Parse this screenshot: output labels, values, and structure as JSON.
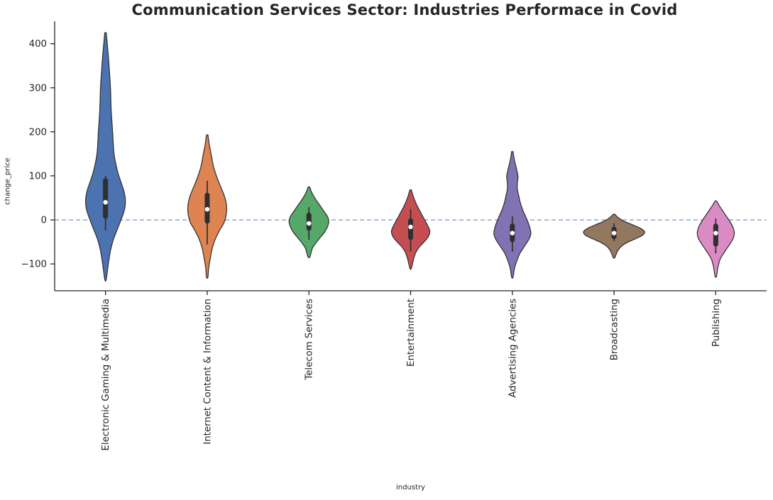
{
  "chart_data": {
    "type": "violin",
    "title": "Communication Services Sector: Industries Performace in Covid",
    "xlabel": "industry",
    "ylabel": "change_price",
    "ylim": [
      -161,
      451
    ],
    "grid": false,
    "legend": "none",
    "yticks": [
      {
        "value": 400,
        "label": "400"
      },
      {
        "value": 300,
        "label": "300"
      },
      {
        "value": 200,
        "label": "200"
      },
      {
        "value": 100,
        "label": "100"
      },
      {
        "value": 0,
        "label": "0"
      },
      {
        "value": -100,
        "label": "−100"
      }
    ],
    "reference_line": {
      "y": 0,
      "style": "dashed",
      "color": "#7ba2c9"
    },
    "categories": [
      "Electronic Gaming & Multimedia",
      "Internet Content & Information",
      "Telecom Services",
      "Entertainment",
      "Advertising Agencies",
      "Broadcasting",
      "Publishing"
    ],
    "violins": [
      {
        "label": "Electronic Gaming & Multimedia",
        "color": "#4C72B0",
        "density": [
          [
            425,
            1
          ],
          [
            390,
            3
          ],
          [
            350,
            5
          ],
          [
            300,
            7
          ],
          [
            250,
            8
          ],
          [
            200,
            10
          ],
          [
            150,
            12
          ],
          [
            110,
            17
          ],
          [
            85,
            22
          ],
          [
            65,
            26
          ],
          [
            45,
            28
          ],
          [
            25,
            27
          ],
          [
            5,
            23
          ],
          [
            -20,
            17
          ],
          [
            -45,
            11
          ],
          [
            -70,
            7
          ],
          [
            -100,
            4
          ],
          [
            -135,
            1
          ]
        ],
        "box": {
          "whisker_low": -24,
          "q1": 8,
          "median": 40,
          "q3": 89,
          "whisker_high": 100
        }
      },
      {
        "label": "Internet Content & Information",
        "color": "#DD8452",
        "density": [
          [
            193,
            1
          ],
          [
            170,
            3
          ],
          [
            145,
            6
          ],
          [
            120,
            9
          ],
          [
            95,
            14
          ],
          [
            75,
            19
          ],
          [
            55,
            24
          ],
          [
            35,
            27
          ],
          [
            15,
            27
          ],
          [
            -5,
            24
          ],
          [
            -25,
            17
          ],
          [
            -45,
            11
          ],
          [
            -65,
            7
          ],
          [
            -90,
            4
          ],
          [
            -110,
            2
          ],
          [
            -130,
            1
          ]
        ],
        "box": {
          "whisker_low": -56,
          "q1": -3,
          "median": 24,
          "q3": 56,
          "whisker_high": 89
        }
      },
      {
        "label": "Telecom Services",
        "color": "#55A868",
        "density": [
          [
            75,
            1
          ],
          [
            62,
            4
          ],
          [
            48,
            9
          ],
          [
            34,
            15
          ],
          [
            20,
            21
          ],
          [
            8,
            26
          ],
          [
            -4,
            28
          ],
          [
            -16,
            26
          ],
          [
            -28,
            22
          ],
          [
            -40,
            16
          ],
          [
            -52,
            10
          ],
          [
            -64,
            5
          ],
          [
            -75,
            3
          ],
          [
            -85,
            1
          ]
        ],
        "box": {
          "whisker_low": -45,
          "q1": -19,
          "median": -8,
          "q3": 11,
          "whisker_high": 29
        }
      },
      {
        "label": "Entertainment",
        "color": "#C44E52",
        "density": [
          [
            68,
            1
          ],
          [
            52,
            4
          ],
          [
            36,
            8
          ],
          [
            20,
            13
          ],
          [
            5,
            18
          ],
          [
            -10,
            23
          ],
          [
            -25,
            27
          ],
          [
            -38,
            25
          ],
          [
            -50,
            19
          ],
          [
            -62,
            12
          ],
          [
            -75,
            7
          ],
          [
            -90,
            4
          ],
          [
            -110,
            1
          ]
        ],
        "box": {
          "whisker_low": -72,
          "q1": -40,
          "median": -16,
          "q3": -2,
          "whisker_high": 24
        }
      },
      {
        "label": "Advertising Agencies",
        "color": "#8172B3",
        "density": [
          [
            155,
            1
          ],
          [
            135,
            3
          ],
          [
            115,
            6
          ],
          [
            98,
            8
          ],
          [
            85,
            7
          ],
          [
            70,
            7
          ],
          [
            55,
            9
          ],
          [
            40,
            11
          ],
          [
            25,
            14
          ],
          [
            10,
            18
          ],
          [
            -5,
            22
          ],
          [
            -20,
            25
          ],
          [
            -32,
            26
          ],
          [
            -45,
            23
          ],
          [
            -60,
            17
          ],
          [
            -75,
            11
          ],
          [
            -90,
            7
          ],
          [
            -110,
            3
          ],
          [
            -130,
            1
          ]
        ],
        "box": {
          "whisker_low": -72,
          "q1": -45,
          "median": -30,
          "q3": -14,
          "whisker_high": 8
        }
      },
      {
        "label": "Broadcasting",
        "color": "#937860",
        "density": [
          [
            13,
            1
          ],
          [
            5,
            6
          ],
          [
            -3,
            14
          ],
          [
            -11,
            26
          ],
          [
            -19,
            37
          ],
          [
            -27,
            43
          ],
          [
            -35,
            40
          ],
          [
            -43,
            30
          ],
          [
            -51,
            19
          ],
          [
            -59,
            11
          ],
          [
            -68,
            6
          ],
          [
            -78,
            3
          ],
          [
            -86,
            1
          ]
        ],
        "box": {
          "whisker_low": -48,
          "q1": -38,
          "median": -30,
          "q3": -21,
          "whisker_high": -8
        }
      },
      {
        "label": "Publishing",
        "color": "#DA8BC3",
        "density": [
          [
            43,
            1
          ],
          [
            32,
            5
          ],
          [
            20,
            10
          ],
          [
            8,
            15
          ],
          [
            -4,
            20
          ],
          [
            -16,
            24
          ],
          [
            -28,
            26
          ],
          [
            -40,
            25
          ],
          [
            -52,
            21
          ],
          [
            -64,
            16
          ],
          [
            -76,
            11
          ],
          [
            -90,
            6
          ],
          [
            -108,
            3
          ],
          [
            -128,
            1
          ]
        ],
        "box": {
          "whisker_low": -76,
          "q1": -55,
          "median": -30,
          "q3": -14,
          "whisker_high": 3
        }
      }
    ],
    "style": {
      "edge_color": "#303030",
      "inner_box_color": "#2f2f2f",
      "axis_color": "#262626",
      "background": "#ffffff",
      "median_dot_color": "#ffffff"
    }
  }
}
